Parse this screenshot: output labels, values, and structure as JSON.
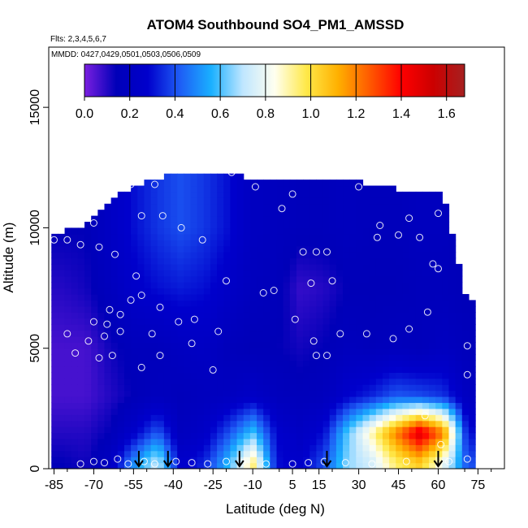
{
  "chart_data": {
    "type": "heatmap",
    "title": "ATOM4 Southbound SO4_PM1_AMSSD",
    "subtitle": "Flts: 2,3,4,5,6,7",
    "annotation": "MMDD: 0427,0429,0501,0503,0506,0509",
    "xlabel": "Latitude (deg N)",
    "ylabel": "Altitude (m)",
    "xlim": [
      -87,
      85
    ],
    "ylim": [
      0,
      17500
    ],
    "x_ticks": [
      -85,
      -70,
      -55,
      -40,
      -25,
      -10,
      5,
      15,
      30,
      45,
      60,
      75
    ],
    "x_tick_labels": [
      "-85",
      "-70",
      "-55",
      "-40",
      "-25",
      "-10",
      "5",
      "15",
      "30",
      "45",
      "60",
      "75"
    ],
    "y_ticks": [
      0,
      5000,
      10000,
      15000
    ],
    "y_tick_labels": [
      "0",
      "5000",
      "10000",
      "15000"
    ],
    "colorbar": {
      "range": [
        0.0,
        1.68
      ],
      "ticks": [
        0.0,
        0.2,
        0.4,
        0.6,
        0.8,
        1.0,
        1.2,
        1.4,
        1.6
      ],
      "tick_labels": [
        "0.0",
        "0.2",
        "0.4",
        "0.6",
        "0.8",
        "1.0",
        "1.2",
        "1.4",
        "1.6"
      ],
      "colors": [
        "#7b1fe0",
        "#0000b8",
        "#0000cc",
        "#1e5cf5",
        "#1ab0ff",
        "#bfe6ff",
        "#fffff0",
        "#ffe94a",
        "#ffb000",
        "#ff5a00",
        "#ff0000",
        "#cc0000",
        "#a62020"
      ]
    },
    "field_columns": [
      {
        "lat": -82,
        "top": 9800,
        "values": [
          0.14,
          0.1,
          0.06,
          0.06,
          0.1,
          0.14
        ]
      },
      {
        "lat": -73,
        "top": 10200,
        "values": [
          0.12,
          0.1,
          0.06,
          0.06,
          0.12,
          0.14
        ]
      },
      {
        "lat": -64,
        "top": 11000,
        "values": [
          0.2,
          0.14,
          0.1,
          0.12,
          0.18,
          0.22
        ]
      },
      {
        "lat": -55,
        "top": 11800,
        "values": [
          0.5,
          0.26,
          0.14,
          0.16,
          0.26,
          0.3
        ]
      },
      {
        "lat": -46,
        "top": 12000,
        "values": [
          0.72,
          0.42,
          0.18,
          0.16,
          0.3,
          0.36
        ]
      },
      {
        "lat": -37,
        "top": 12300,
        "values": [
          0.26,
          0.18,
          0.16,
          0.2,
          0.32,
          0.4
        ]
      },
      {
        "lat": -28,
        "top": 12300,
        "values": [
          0.34,
          0.24,
          0.18,
          0.22,
          0.3,
          0.36
        ]
      },
      {
        "lat": -19,
        "top": 12300,
        "values": [
          0.58,
          0.4,
          0.2,
          0.16,
          0.24,
          0.3
        ]
      },
      {
        "lat": -10,
        "top": 12000,
        "values": [
          0.95,
          0.6,
          0.24,
          0.14,
          0.18,
          0.2
        ]
      },
      {
        "lat": -1,
        "top": 12000,
        "values": [
          0.3,
          0.28,
          0.18,
          0.14,
          0.16,
          0.18
        ]
      },
      {
        "lat": 8,
        "top": 12000,
        "values": [
          0.26,
          0.22,
          0.16,
          0.12,
          0.08,
          0.16
        ]
      },
      {
        "lat": 17,
        "top": 12000,
        "values": [
          0.4,
          0.3,
          0.18,
          0.14,
          0.1,
          0.16
        ]
      },
      {
        "lat": 26,
        "top": 12000,
        "values": [
          0.66,
          0.62,
          0.28,
          0.18,
          0.14,
          0.18
        ]
      },
      {
        "lat": 35,
        "top": 11800,
        "values": [
          0.74,
          0.9,
          0.34,
          0.16,
          0.14,
          0.16
        ]
      },
      {
        "lat": 44,
        "top": 11600,
        "values": [
          0.95,
          1.2,
          0.42,
          0.18,
          0.14,
          0.16
        ]
      },
      {
        "lat": 53,
        "top": 11400,
        "values": [
          1.05,
          1.5,
          0.4,
          0.16,
          0.16,
          0.18
        ]
      },
      {
        "lat": 62,
        "top": 11400,
        "values": [
          0.8,
          1.2,
          0.36,
          0.2,
          0.16,
          0.18
        ]
      },
      {
        "lat": 71,
        "top": 7000,
        "values": [
          0.4,
          0.3,
          0.2,
          0.16,
          0.14,
          0.14
        ]
      }
    ],
    "field_levels": [
      250,
      1500,
      3000,
      5000,
      7500,
      10000
    ],
    "observations": [
      {
        "x": -75,
        "y": 200
      },
      {
        "x": -70,
        "y": 300
      },
      {
        "x": -66,
        "y": 250
      },
      {
        "x": -61,
        "y": 400
      },
      {
        "x": -57,
        "y": 200
      },
      {
        "x": -51,
        "y": 300
      },
      {
        "x": -47,
        "y": 200
      },
      {
        "x": -39,
        "y": 300
      },
      {
        "x": -33,
        "y": 250
      },
      {
        "x": -27,
        "y": 200
      },
      {
        "x": -20,
        "y": 300
      },
      {
        "x": -14,
        "y": 250
      },
      {
        "x": -5,
        "y": 200
      },
      {
        "x": 5,
        "y": 200
      },
      {
        "x": 11,
        "y": 250
      },
      {
        "x": 17,
        "y": 300
      },
      {
        "x": 25,
        "y": 250
      },
      {
        "x": 35,
        "y": 200
      },
      {
        "x": 48,
        "y": 300
      },
      {
        "x": 64,
        "y": 300
      },
      {
        "x": 71,
        "y": 400
      },
      {
        "x": 55,
        "y": 2200
      },
      {
        "x": 61,
        "y": 1000
      },
      {
        "x": 71,
        "y": 3900
      },
      {
        "x": -52,
        "y": 4200
      },
      {
        "x": -25,
        "y": 4100
      },
      {
        "x": 14,
        "y": 4700
      },
      {
        "x": 18,
        "y": 4700
      },
      {
        "x": -77,
        "y": 4800
      },
      {
        "x": -68,
        "y": 4600
      },
      {
        "x": -63,
        "y": 4700
      },
      {
        "x": -45,
        "y": 4700
      },
      {
        "x": -80,
        "y": 5600
      },
      {
        "x": -72,
        "y": 5300
      },
      {
        "x": -66,
        "y": 5500
      },
      {
        "x": -60,
        "y": 5700
      },
      {
        "x": -48,
        "y": 5600
      },
      {
        "x": -38,
        "y": 6100
      },
      {
        "x": -33,
        "y": 5200
      },
      {
        "x": -23,
        "y": 5700
      },
      {
        "x": 6,
        "y": 6200
      },
      {
        "x": 13,
        "y": 5300
      },
      {
        "x": 23,
        "y": 5600
      },
      {
        "x": 33,
        "y": 5600
      },
      {
        "x": 43,
        "y": 5400
      },
      {
        "x": 49,
        "y": 5800
      },
      {
        "x": 56,
        "y": 6500
      },
      {
        "x": 71,
        "y": 5100
      },
      {
        "x": -70,
        "y": 6100
      },
      {
        "x": -64,
        "y": 6600
      },
      {
        "x": -56,
        "y": 7000
      },
      {
        "x": -45,
        "y": 6700
      },
      {
        "x": -32,
        "y": 6200
      },
      {
        "x": -54,
        "y": 8000
      },
      {
        "x": -52,
        "y": 7200
      },
      {
        "x": -20,
        "y": 7800
      },
      {
        "x": -6,
        "y": 7300
      },
      {
        "x": -2,
        "y": 7400
      },
      {
        "x": 12,
        "y": 7700
      },
      {
        "x": 20,
        "y": 7800
      },
      {
        "x": -75,
        "y": 9300
      },
      {
        "x": -68,
        "y": 9200
      },
      {
        "x": -62,
        "y": 8900
      },
      {
        "x": -70,
        "y": 10200
      },
      {
        "x": -52,
        "y": 10500
      },
      {
        "x": -44,
        "y": 10500
      },
      {
        "x": -37,
        "y": 10000
      },
      {
        "x": -29,
        "y": 9500
      },
      {
        "x": 9,
        "y": 9000
      },
      {
        "x": 14,
        "y": 9000
      },
      {
        "x": 18,
        "y": 9000
      },
      {
        "x": 37,
        "y": 9600
      },
      {
        "x": 45,
        "y": 9700
      },
      {
        "x": 53,
        "y": 9600
      },
      {
        "x": 58,
        "y": 8500
      },
      {
        "x": 60,
        "y": 8300
      },
      {
        "x": -85,
        "y": 9500
      },
      {
        "x": -80,
        "y": 9500
      },
      {
        "x": -65,
        "y": 11400
      },
      {
        "x": -56,
        "y": 11800
      },
      {
        "x": -47,
        "y": 11800
      },
      {
        "x": -18,
        "y": 12300
      },
      {
        "x": -9,
        "y": 11700
      },
      {
        "x": 5,
        "y": 11400
      },
      {
        "x": 30,
        "y": 11700
      },
      {
        "x": 38,
        "y": 10100
      },
      {
        "x": 49,
        "y": 10400
      },
      {
        "x": 67,
        "y": 11400
      },
      {
        "x": -60,
        "y": 6400
      },
      {
        "x": -65,
        "y": 6000
      },
      {
        "x": 1,
        "y": 10800
      },
      {
        "x": 60,
        "y": 10600
      }
    ],
    "arrows": [
      -53,
      -42,
      -15,
      18,
      60
    ]
  }
}
